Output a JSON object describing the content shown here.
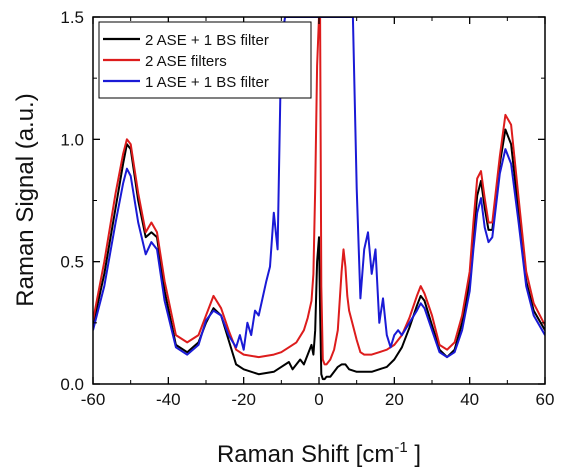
{
  "chart_data": {
    "type": "line",
    "xlabel": "Raman Shift [cm",
    "xlabel_sup": "-1",
    "xlabel_tail": " ]",
    "ylabel": "Raman Signal (a.u.)",
    "xlim": [
      -60,
      60
    ],
    "ylim": [
      0,
      1.5
    ],
    "xticks": [
      -60,
      -40,
      -20,
      0,
      20,
      40,
      60
    ],
    "yticks": [
      0.0,
      0.5,
      1.0,
      1.5
    ],
    "xtick_labels": [
      "-60",
      "-40",
      "-20",
      "0",
      "20",
      "40",
      "60"
    ],
    "ytick_labels": [
      "0.0",
      "0.5",
      "1.0",
      "1.5"
    ],
    "grid": false,
    "legend_position": "top-left",
    "series": [
      {
        "name": "2 ASE + 1 BS filter",
        "color": "#000000",
        "x": [
          -60,
          -57,
          -54,
          -52,
          -51,
          -50,
          -48,
          -46,
          -44.5,
          -43,
          -41,
          -38,
          -35,
          -32,
          -30,
          -28,
          -26,
          -24,
          -22,
          -20,
          -16,
          -12,
          -10,
          -8,
          -7,
          -6,
          -5,
          -4,
          -3,
          -2,
          -1.5,
          -1,
          -0.5,
          0,
          0.3,
          0.6,
          1,
          1.5,
          2,
          3,
          4,
          5,
          6,
          7,
          8,
          10,
          12,
          14,
          16,
          18,
          20,
          22,
          24,
          26,
          27,
          28,
          30,
          32,
          34,
          36,
          38,
          40,
          41,
          42,
          43,
          44,
          45,
          46,
          48,
          49.5,
          51,
          53,
          55,
          57,
          60
        ],
        "values": [
          0.24,
          0.45,
          0.72,
          0.9,
          0.98,
          0.96,
          0.75,
          0.6,
          0.62,
          0.6,
          0.38,
          0.16,
          0.13,
          0.17,
          0.25,
          0.31,
          0.28,
          0.18,
          0.08,
          0.06,
          0.04,
          0.05,
          0.07,
          0.09,
          0.06,
          0.08,
          0.1,
          0.08,
          0.12,
          0.16,
          0.12,
          0.22,
          0.5,
          0.6,
          0.3,
          0.04,
          0.02,
          0.02,
          0.03,
          0.03,
          0.05,
          0.07,
          0.08,
          0.08,
          0.06,
          0.05,
          0.05,
          0.05,
          0.06,
          0.07,
          0.1,
          0.15,
          0.23,
          0.32,
          0.36,
          0.34,
          0.24,
          0.14,
          0.11,
          0.14,
          0.25,
          0.42,
          0.6,
          0.77,
          0.83,
          0.72,
          0.63,
          0.63,
          0.9,
          1.04,
          0.98,
          0.7,
          0.42,
          0.3,
          0.22
        ]
      },
      {
        "name": "2 ASE filters",
        "color": "#dd1c1c",
        "x": [
          -60,
          -57,
          -54,
          -52,
          -51,
          -50,
          -48,
          -46,
          -44.5,
          -43,
          -41,
          -38,
          -35,
          -32,
          -30,
          -28,
          -26,
          -24,
          -22,
          -20,
          -16,
          -12,
          -10,
          -8,
          -6,
          -4,
          -3,
          -2,
          -1.5,
          -1,
          -0.5,
          0,
          0.3,
          0.6,
          1,
          1.5,
          2,
          3,
          4,
          5,
          6,
          6.5,
          7,
          7.5,
          8,
          9,
          10,
          11,
          12,
          14,
          16,
          18,
          20,
          22,
          24,
          26,
          27,
          28,
          30,
          32,
          34,
          36,
          38,
          40,
          41,
          42,
          43,
          44,
          45,
          46,
          48,
          49.5,
          51,
          53,
          55,
          57,
          60
        ],
        "values": [
          0.26,
          0.5,
          0.78,
          0.94,
          1.0,
          0.98,
          0.78,
          0.62,
          0.66,
          0.62,
          0.42,
          0.2,
          0.17,
          0.2,
          0.28,
          0.36,
          0.31,
          0.22,
          0.14,
          0.12,
          0.11,
          0.12,
          0.13,
          0.15,
          0.17,
          0.22,
          0.27,
          0.34,
          0.45,
          0.8,
          1.3,
          1.5,
          1.5,
          0.4,
          0.1,
          0.08,
          0.08,
          0.1,
          0.14,
          0.22,
          0.46,
          0.55,
          0.48,
          0.36,
          0.3,
          0.24,
          0.18,
          0.13,
          0.12,
          0.12,
          0.13,
          0.14,
          0.16,
          0.2,
          0.27,
          0.36,
          0.4,
          0.37,
          0.28,
          0.16,
          0.14,
          0.17,
          0.28,
          0.46,
          0.66,
          0.84,
          0.87,
          0.76,
          0.66,
          0.66,
          0.93,
          1.1,
          1.06,
          0.76,
          0.46,
          0.33,
          0.24
        ]
      },
      {
        "name": "1 ASE + 1 BS filter",
        "color": "#1a1ad6",
        "x": [
          -60,
          -57,
          -54,
          -52,
          -51,
          -50,
          -48,
          -46,
          -44.5,
          -43,
          -41,
          -38,
          -35,
          -32,
          -30,
          -28,
          -26,
          -24,
          -22,
          -21,
          -20,
          -19,
          -18,
          -17,
          -16,
          -15,
          -14,
          -13,
          -12,
          -11,
          -10,
          -9,
          -8.5,
          -8,
          -7,
          -6,
          -5,
          -4,
          -3,
          -2,
          -1,
          0,
          6,
          7,
          8,
          8.5,
          9,
          10,
          11,
          12,
          13,
          14,
          15,
          16,
          17,
          18,
          19,
          20,
          21,
          22,
          24,
          26,
          27,
          28,
          30,
          32,
          34,
          36,
          38,
          40,
          41,
          42,
          43,
          44,
          45,
          46,
          48,
          49.5,
          51,
          53,
          55,
          57,
          60
        ],
        "values": [
          0.22,
          0.4,
          0.66,
          0.82,
          0.88,
          0.85,
          0.66,
          0.53,
          0.58,
          0.55,
          0.34,
          0.15,
          0.12,
          0.16,
          0.26,
          0.3,
          0.28,
          0.2,
          0.15,
          0.2,
          0.14,
          0.25,
          0.2,
          0.3,
          0.28,
          0.35,
          0.42,
          0.48,
          0.7,
          0.55,
          1.4,
          1.5,
          1.5,
          1.5,
          1.5,
          1.5,
          1.5,
          1.5,
          1.5,
          1.5,
          1.5,
          1.5,
          1.5,
          1.5,
          1.5,
          1.5,
          1.5,
          0.8,
          0.35,
          0.55,
          0.62,
          0.45,
          0.55,
          0.25,
          0.35,
          0.2,
          0.15,
          0.2,
          0.22,
          0.2,
          0.25,
          0.3,
          0.33,
          0.31,
          0.22,
          0.13,
          0.11,
          0.13,
          0.22,
          0.38,
          0.55,
          0.7,
          0.76,
          0.64,
          0.58,
          0.6,
          0.86,
          0.96,
          0.9,
          0.66,
          0.4,
          0.28,
          0.2
        ]
      }
    ]
  }
}
